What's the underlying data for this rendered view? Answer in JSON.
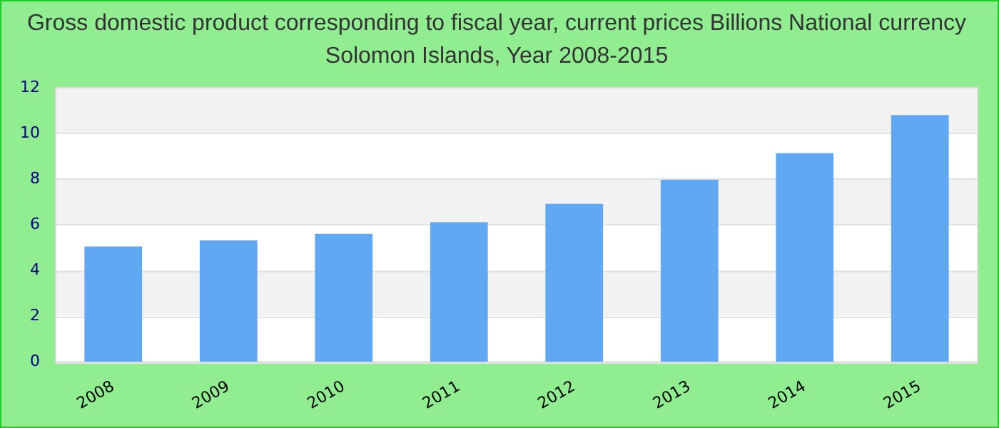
{
  "chart_data": {
    "type": "bar",
    "title": "Gross domestic product corresponding to fiscal year, current prices Billions National currency",
    "subtitle": "Solomon Islands, Year 2008-2015",
    "categories": [
      "2008",
      "2009",
      "2010",
      "2011",
      "2012",
      "2013",
      "2014",
      "2015"
    ],
    "values": [
      5.05,
      5.31,
      5.6,
      6.11,
      6.91,
      7.97,
      9.13,
      10.8
    ],
    "color": "#60a8f4",
    "ylim": [
      0,
      12
    ],
    "yticks": [
      0,
      2,
      4,
      6,
      8,
      10,
      12
    ],
    "grid": "y",
    "legend": false
  }
}
